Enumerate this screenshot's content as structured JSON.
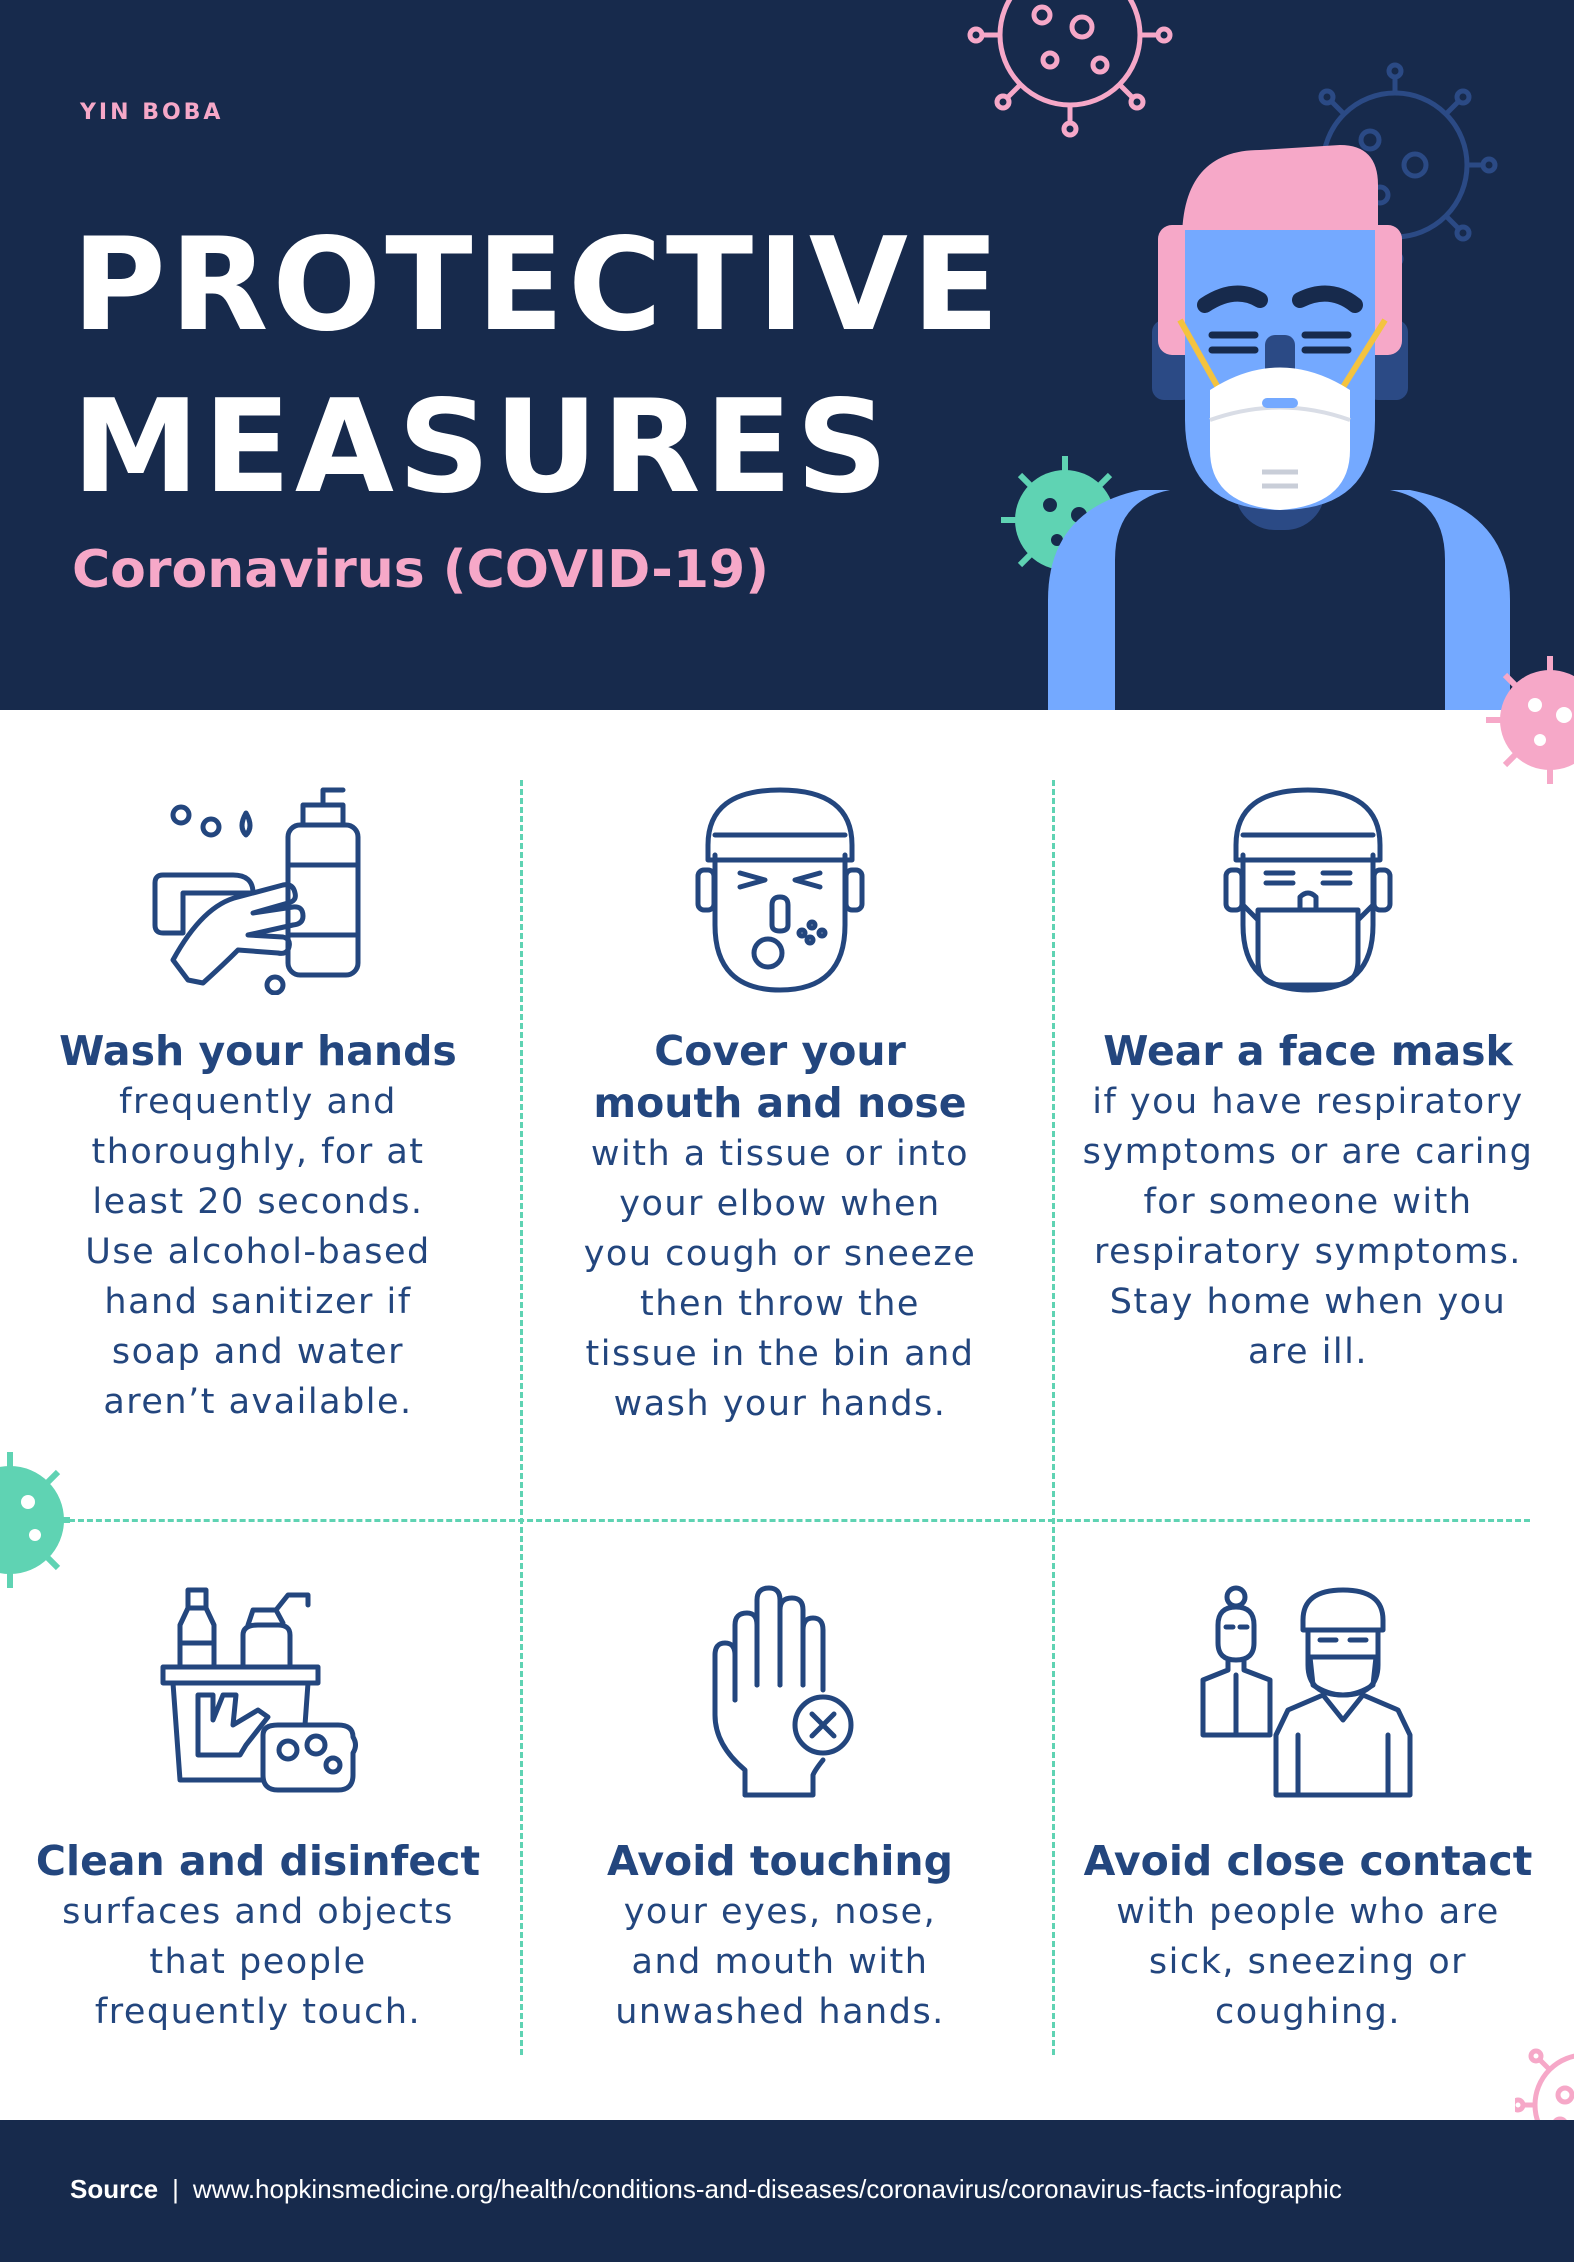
{
  "header": {
    "brand": "YIN BOBA",
    "title_line1": "PROTECTIVE",
    "title_line2": "MEASURES",
    "subtitle": "Coronavirus (COVID-19)"
  },
  "measures": [
    {
      "heading": "Wash your hands",
      "body": [
        "frequently and",
        "thoroughly, for at",
        "least 20 seconds.",
        "Use alcohol-based",
        "hand sanitizer if",
        "soap and water",
        "aren’t available."
      ],
      "icon": "hand-washing-icon"
    },
    {
      "heading": [
        "Cover your",
        "mouth and nose"
      ],
      "body": [
        "with a tissue or into",
        "your elbow when",
        "you cough or sneeze",
        "then throw the",
        "tissue in the bin and",
        "wash your hands."
      ],
      "icon": "sneezing-face-icon"
    },
    {
      "heading": "Wear a face mask",
      "body": [
        "if you have respiratory",
        "symptoms or are caring",
        "for someone with",
        "respiratory symptoms.",
        "Stay home when you",
        "are ill."
      ],
      "icon": "masked-face-icon"
    },
    {
      "heading": "Clean and disinfect",
      "body": [
        "surfaces and objects",
        "that people",
        "frequently touch."
      ],
      "icon": "cleaning-supplies-icon"
    },
    {
      "heading": "Avoid touching",
      "body": [
        "your eyes, nose,",
        "and mouth with",
        "unwashed hands."
      ],
      "icon": "hand-x-icon"
    },
    {
      "heading": "Avoid close contact",
      "body": [
        "with people who are",
        "sick, sneezing or",
        "coughing."
      ],
      "icon": "people-distance-icon"
    }
  ],
  "footer": {
    "source_label": "Source",
    "separator": "|",
    "source_url": "www.hopkinsmedicine.org/health/conditions-and-diseases/coronavirus/coronavirus-facts-infographic"
  },
  "colors": {
    "navy": "#172a4c",
    "pink": "#f6a8c8",
    "blue": "#74a9ff",
    "teal": "#5fd3b3",
    "icon_stroke": "#23467e"
  }
}
